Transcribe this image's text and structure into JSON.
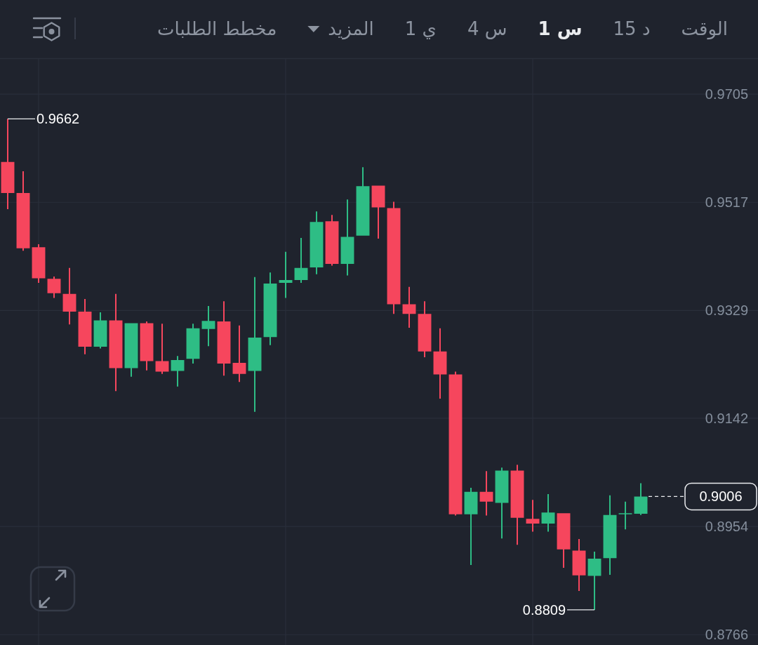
{
  "chart_data": {
    "type": "candlestick",
    "annotations": [
      "الوقت",
      "15 د",
      "1 س",
      "4 س",
      "1 ي",
      "المزيد",
      "مخطط الطلبات",
      "0.9662",
      "0.8809"
    ],
    "categories": [
      null,
      null,
      null,
      null,
      null,
      null,
      null,
      null,
      null,
      null,
      null,
      null,
      null,
      null,
      null,
      null,
      null,
      null,
      null,
      null,
      null,
      null,
      null,
      null,
      null,
      null,
      null,
      null,
      null,
      null,
      null,
      null,
      null,
      null,
      null,
      null,
      null,
      null,
      null,
      null,
      null,
      null
    ],
    "ohlc": [
      [
        0.9587,
        0.9662,
        0.9505,
        0.9533
      ],
      [
        0.9533,
        0.9571,
        0.9433,
        0.9437
      ],
      [
        0.9439,
        0.9444,
        0.9377,
        0.9385
      ],
      [
        0.9384,
        0.9388,
        0.9351,
        0.9359
      ],
      [
        0.9358,
        0.9403,
        0.9305,
        0.9327
      ],
      [
        0.9327,
        0.9349,
        0.9253,
        0.9266
      ],
      [
        0.9266,
        0.9326,
        0.9263,
        0.9312
      ],
      [
        0.9312,
        0.9358,
        0.9189,
        0.9229
      ],
      [
        0.9229,
        0.9307,
        0.9214,
        0.9307
      ],
      [
        0.9307,
        0.931,
        0.9225,
        0.9241
      ],
      [
        0.9241,
        0.9306,
        0.9219,
        0.9223
      ],
      [
        0.9224,
        0.925,
        0.9197,
        0.9243
      ],
      [
        0.9245,
        0.9306,
        0.9237,
        0.9298
      ],
      [
        0.9297,
        0.9337,
        0.9267,
        0.9311
      ],
      [
        0.931,
        0.9345,
        0.9216,
        0.9237
      ],
      [
        0.9238,
        0.9303,
        0.9205,
        0.9219
      ],
      [
        0.9224,
        0.9387,
        0.9153,
        0.9282
      ],
      [
        0.9283,
        0.9395,
        0.9269,
        0.9376
      ],
      [
        0.9377,
        0.9431,
        0.9351,
        0.9382
      ],
      [
        0.9382,
        0.9455,
        0.9377,
        0.9403
      ],
      [
        0.9404,
        0.9501,
        0.9392,
        0.9483
      ],
      [
        0.9484,
        0.9495,
        0.9407,
        0.941
      ],
      [
        0.941,
        0.9522,
        0.939,
        0.9457
      ],
      [
        0.9459,
        0.9578,
        0.9459,
        0.9545
      ],
      [
        0.9546,
        0.9546,
        0.9454,
        0.9508
      ],
      [
        0.9507,
        0.9518,
        0.9323,
        0.934
      ],
      [
        0.934,
        0.937,
        0.9299,
        0.9323
      ],
      [
        0.9323,
        0.9345,
        0.9248,
        0.9258
      ],
      [
        0.9258,
        0.9298,
        0.9176,
        0.9218
      ],
      [
        0.9218,
        0.9223,
        0.8973,
        0.8975
      ],
      [
        0.8975,
        0.9021,
        0.8887,
        0.9014
      ],
      [
        0.9014,
        0.905,
        0.8973,
        0.8997
      ],
      [
        0.8995,
        0.9056,
        0.8933,
        0.9051
      ],
      [
        0.9051,
        0.9061,
        0.8922,
        0.8969
      ],
      [
        0.8967,
        0.9,
        0.8945,
        0.8959
      ],
      [
        0.8959,
        0.901,
        0.8945,
        0.8978
      ],
      [
        0.8977,
        0.8977,
        0.8882,
        0.8914
      ],
      [
        0.8912,
        0.8932,
        0.8842,
        0.8869
      ],
      [
        0.8868,
        0.891,
        0.8809,
        0.8898
      ],
      [
        0.8899,
        0.9008,
        0.887,
        0.8974
      ],
      [
        0.8975,
        0.8997,
        0.8949,
        0.8977
      ],
      [
        0.8976,
        0.9029,
        0.8974,
        0.9006
      ]
    ],
    "colors": [
      "#f6465d",
      "#f6465d",
      "#f6465d",
      "#f6465d",
      "#f6465d",
      "#f6465d",
      "#2ebd85",
      "#f6465d",
      "#2ebd85",
      "#f6465d",
      "#f6465d",
      "#2ebd85",
      "#2ebd85",
      "#2ebd85",
      "#f6465d",
      "#f6465d",
      "#2ebd85",
      "#2ebd85",
      "#2ebd85",
      "#2ebd85",
      "#2ebd85",
      "#f6465d",
      "#2ebd85",
      "#2ebd85",
      "#f6465d",
      "#f6465d",
      "#f6465d",
      "#f6465d",
      "#f6465d",
      "#f6465d",
      "#2ebd85",
      "#f6465d",
      "#2ebd85",
      "#f6465d",
      "#f6465d",
      "#2ebd85",
      "#f6465d",
      "#f6465d",
      "#2ebd85",
      "#2ebd85",
      "#2ebd85",
      "#2ebd85"
    ],
    "ylim": [
      0.8748,
      0.9766
    ],
    "yticks": [
      0.8766,
      0.8954,
      0.9142,
      0.9329,
      0.9517,
      0.9705
    ],
    "tick_labels": "y",
    "grid": true,
    "ref_lines": [
      {
        "axis": "y",
        "value": 0.9006,
        "label": "0.9006",
        "color": "#eaecef",
        "line_style": "dashed"
      }
    ]
  }
}
